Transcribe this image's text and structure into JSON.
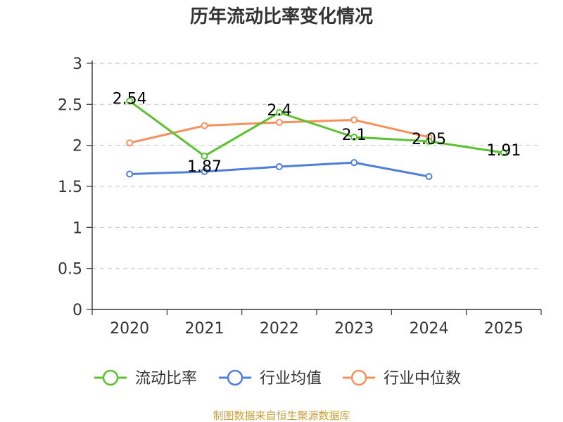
{
  "chart_data": {
    "type": "line",
    "title": "历年流动比率变化情况",
    "categories": [
      "2020",
      "2021",
      "2022",
      "2023",
      "2024",
      "2025"
    ],
    "ylim": [
      0,
      3
    ],
    "yticks": [
      "0",
      "0.5",
      "1",
      "1.5",
      "2",
      "2.5",
      "3"
    ],
    "series": [
      {
        "name": "流动比率",
        "color": "#5cc130",
        "values": [
          2.54,
          1.87,
          2.4,
          2.1,
          2.05,
          1.91
        ],
        "labels": [
          "2.54",
          "1.87",
          "2.4",
          "2.1",
          "2.05",
          "1.91"
        ]
      },
      {
        "name": "行业均值",
        "color": "#4f7fd8",
        "values": [
          1.65,
          1.68,
          1.74,
          1.79,
          1.62,
          null
        ]
      },
      {
        "name": "行业中位数",
        "color": "#f7905a",
        "values": [
          2.03,
          2.24,
          2.28,
          2.31,
          2.1,
          null
        ]
      }
    ],
    "source": "制图数据来自恒生聚源数据库"
  }
}
